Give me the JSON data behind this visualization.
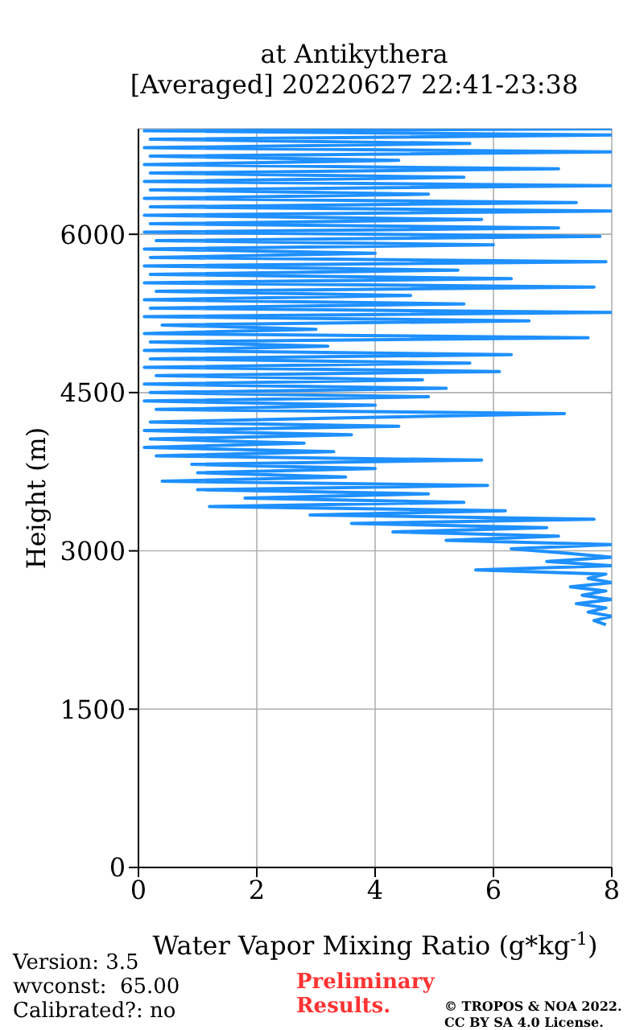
{
  "chart_data": {
    "type": "line",
    "title": "at Antikythera",
    "subtitle": "[Averaged] 20220627 22:41-23:38",
    "xlabel": "Water Vapor Mixing Ratio (g*kg$^{-1}$)",
    "ylabel": "Height (m)",
    "xlim": [
      0,
      8
    ],
    "xticks": [
      0,
      2,
      4,
      6,
      8
    ],
    "ylim": [
      0,
      7000
    ],
    "yticks": [
      0,
      1500,
      3000,
      4500,
      6000
    ],
    "grid": true,
    "marker": "none",
    "line_style": "solid",
    "series": [
      {
        "color": "#1e90ff",
        "x": [
          7.9,
          7.7,
          8,
          7.6,
          7.9,
          7.4,
          8,
          7.5,
          7.9,
          7.3,
          8,
          7.6,
          7.9,
          5.7,
          8,
          6.9,
          8,
          7.2,
          6.3,
          8,
          5.2,
          7.1,
          4.3,
          6.9,
          3.6,
          7.7,
          2.9,
          6.2,
          1.2,
          5.5,
          1.8,
          4.9,
          1.0,
          5.9,
          0.4,
          3.5,
          1.0,
          4.0,
          0.9,
          5.8,
          0.3,
          3.3,
          0.1,
          2.8,
          0.2,
          3.6,
          0.1,
          4.4,
          0.2,
          3.5,
          7.2,
          0.3,
          4.0,
          0.1,
          4.9,
          0.2,
          5.2,
          0.1,
          4.8,
          0.3,
          6.1,
          0.1,
          5.6,
          0.2,
          6.3,
          0.1,
          3.2,
          0.2,
          7.6,
          0.1,
          3.0,
          0.4,
          6.6,
          0.1,
          8,
          0.2,
          5.5,
          0.1,
          4.6,
          0.3,
          7.7,
          0.1,
          6.3,
          0.2,
          5.4,
          0.1,
          7.9,
          0.2,
          4.0,
          0.1,
          6.0,
          0.3,
          7.8,
          0.1,
          7.1,
          0.2,
          5.8,
          0.1,
          8,
          0.2,
          7.4,
          0.1,
          4.9,
          0.2,
          8,
          0.1,
          5.5,
          0.2,
          7.1,
          0.1,
          4.4,
          0.2,
          8,
          0.1,
          5.6,
          0.2,
          8,
          0.1,
          8
        ],
        "values": [
          2300,
          2340,
          2380,
          2420,
          2460,
          2500,
          2540,
          2580,
          2620,
          2660,
          2700,
          2740,
          2780,
          2820,
          2860,
          2900,
          2940,
          2980,
          3020,
          3060,
          3100,
          3140,
          3180,
          3220,
          3260,
          3300,
          3340,
          3380,
          3420,
          3460,
          3500,
          3540,
          3580,
          3620,
          3660,
          3700,
          3740,
          3780,
          3820,
          3860,
          3900,
          3940,
          3980,
          4020,
          4060,
          4100,
          4140,
          4180,
          4220,
          4260,
          4300,
          4340,
          4380,
          4420,
          4460,
          4500,
          4540,
          4580,
          4620,
          4660,
          4700,
          4740,
          4780,
          4820,
          4860,
          4900,
          4940,
          4980,
          5020,
          5060,
          5100,
          5140,
          5180,
          5220,
          5260,
          5300,
          5340,
          5380,
          5420,
          5460,
          5500,
          5540,
          5580,
          5620,
          5660,
          5700,
          5740,
          5780,
          5820,
          5860,
          5900,
          5940,
          5980,
          6020,
          6060,
          6100,
          6140,
          6180,
          6220,
          6260,
          6300,
          6340,
          6380,
          6420,
          6460,
          6500,
          6540,
          6580,
          6620,
          6660,
          6700,
          6740,
          6780,
          6820,
          6860,
          6900,
          6940,
          6980,
          7000
        ]
      }
    ],
    "annotations": [
      "Version: 3.5",
      "wvconst:  65.00",
      "Calibrated?: no",
      "Preliminary Results.",
      "© TROPOS & NOA 2022.",
      "CC BY SA 4.0 License."
    ]
  }
}
